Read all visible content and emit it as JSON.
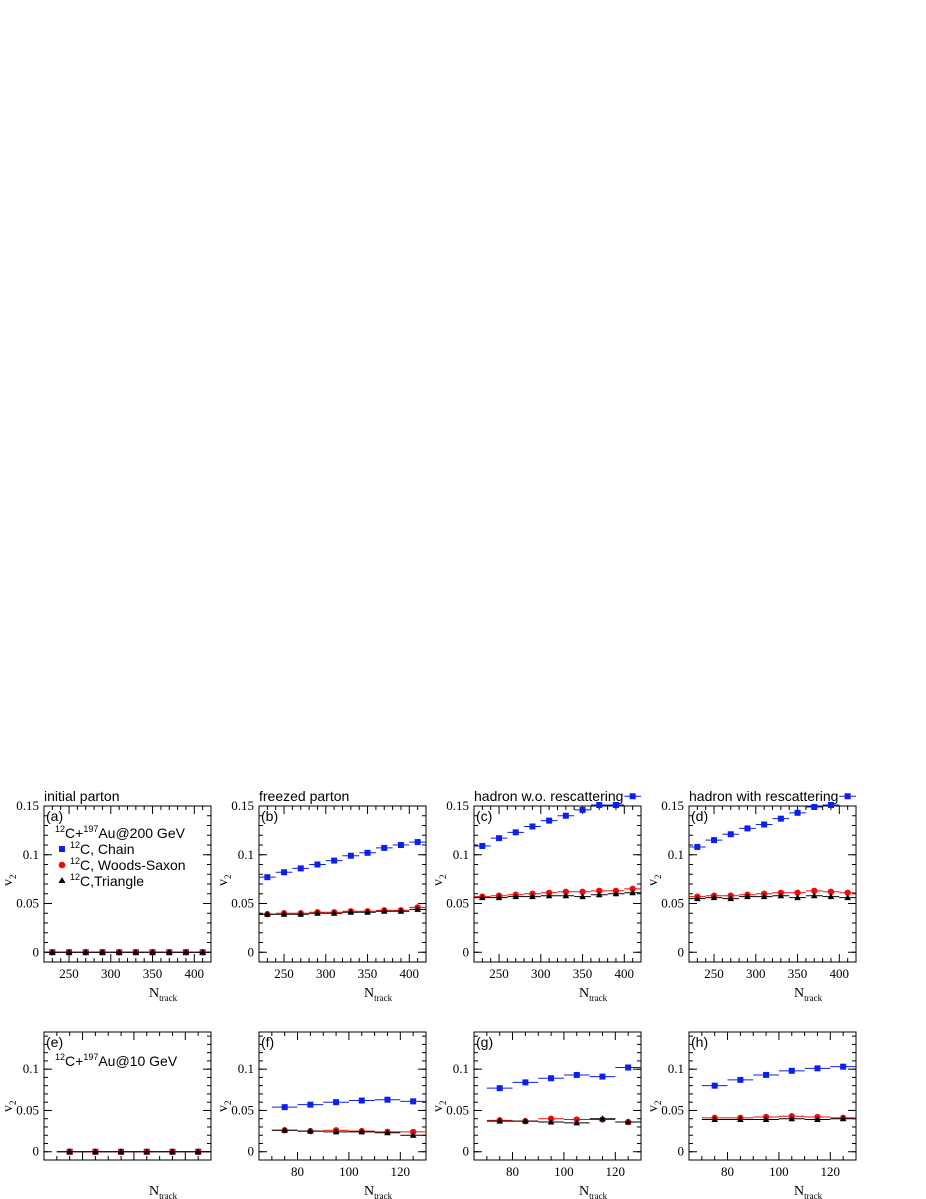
{
  "colors": {
    "chain": "#0b1fef",
    "woods_saxon": "#f00b0b",
    "triangle": "#000000"
  },
  "legend": {
    "system_top": {
      "a": "12",
      "b": "C+",
      "c": "197",
      "d": "Au@200 GeV"
    },
    "system_bottom": {
      "a": "12",
      "b": "C+",
      "c": "197",
      "d": "Au@10 GeV"
    },
    "entries": [
      {
        "sup": "12",
        "text": "C, Chain",
        "marker": "square",
        "color": "#0b1fef"
      },
      {
        "sup": "12",
        "text": "C, Woods-Saxon",
        "marker": "circle",
        "color": "#f00b0b"
      },
      {
        "sup": "12",
        "text": "C,Triangle",
        "marker": "triangle",
        "color": "#000000"
      }
    ]
  },
  "axis_text": {
    "ylabel_main": "v",
    "ylabel_sub": "2",
    "xlabel_main": "N",
    "xlabel_sub": "track"
  },
  "chart_data": [
    {
      "type": "scatter",
      "panel": "(a)",
      "title": "initial parton",
      "xlim": [
        220,
        420
      ],
      "ylim": [
        -0.01,
        0.15
      ],
      "xticks": [
        250,
        300,
        350,
        400
      ],
      "xtick_labels": [
        "250",
        "300",
        "350",
        "400"
      ],
      "yticks": [
        0,
        0.05,
        0.1,
        0.15
      ],
      "ytick_labels": [
        "0",
        "0.05",
        "0.1",
        "0.15"
      ],
      "x": [
        230,
        250,
        270,
        290,
        310,
        330,
        350,
        370,
        390,
        410
      ],
      "series": [
        {
          "name": "12C, Chain",
          "marker": "square",
          "color": "#0b1fef",
          "values": [
            0,
            0,
            0,
            0,
            0,
            0,
            0,
            0,
            0,
            0
          ]
        },
        {
          "name": "12C, Woods-Saxon",
          "marker": "circle",
          "color": "#f00b0b",
          "values": [
            0,
            0,
            0,
            0,
            0,
            0,
            0,
            0,
            0,
            0
          ]
        },
        {
          "name": "12C,Triangle",
          "marker": "triangle",
          "color": "#000000",
          "values": [
            0,
            0,
            0,
            0,
            0,
            0,
            0,
            0,
            0,
            0
          ]
        }
      ]
    },
    {
      "type": "scatter",
      "panel": "(b)",
      "title": "freezed parton",
      "xlim": [
        220,
        420
      ],
      "ylim": [
        -0.01,
        0.15
      ],
      "xticks": [
        250,
        300,
        350,
        400
      ],
      "xtick_labels": [
        "250",
        "300",
        "350",
        "400"
      ],
      "yticks": [
        0,
        0.05,
        0.1,
        0.15
      ],
      "ytick_labels": [
        "0",
        "0.05",
        "0.1",
        "0.15"
      ],
      "x": [
        230,
        250,
        270,
        290,
        310,
        330,
        350,
        370,
        390,
        410
      ],
      "series": [
        {
          "name": "12C, Chain",
          "marker": "square",
          "color": "#0b1fef",
          "values": [
            0.077,
            0.082,
            0.086,
            0.09,
            0.094,
            0.099,
            0.102,
            0.107,
            0.11,
            0.113
          ]
        },
        {
          "name": "12C, Woods-Saxon",
          "marker": "circle",
          "color": "#f00b0b",
          "values": [
            0.039,
            0.04,
            0.04,
            0.041,
            0.041,
            0.042,
            0.042,
            0.043,
            0.043,
            0.046
          ]
        },
        {
          "name": "12C,Triangle",
          "marker": "triangle",
          "color": "#000000",
          "values": [
            0.039,
            0.039,
            0.039,
            0.04,
            0.04,
            0.041,
            0.041,
            0.042,
            0.042,
            0.044
          ]
        }
      ]
    },
    {
      "type": "scatter",
      "panel": "(c)",
      "title": "hadron w.o. rescattering",
      "xlim": [
        220,
        420
      ],
      "ylim": [
        -0.01,
        0.15
      ],
      "xticks": [
        250,
        300,
        350,
        400
      ],
      "xtick_labels": [
        "250",
        "300",
        "350",
        "400"
      ],
      "yticks": [
        0,
        0.05,
        0.1,
        0.15
      ],
      "ytick_labels": [
        "0",
        "0.05",
        "0.1",
        "0.15"
      ],
      "x": [
        230,
        250,
        270,
        290,
        310,
        330,
        350,
        370,
        390,
        410
      ],
      "series": [
        {
          "name": "12C, Chain",
          "marker": "square",
          "color": "#0b1fef",
          "values": [
            0.109,
            0.117,
            0.123,
            0.129,
            0.135,
            0.14,
            0.146,
            0.151,
            0.151,
            0.16
          ]
        },
        {
          "name": "12C, Woods-Saxon",
          "marker": "circle",
          "color": "#f00b0b",
          "values": [
            0.057,
            0.058,
            0.059,
            0.06,
            0.061,
            0.062,
            0.062,
            0.063,
            0.063,
            0.065
          ]
        },
        {
          "name": "12C,Triangle",
          "marker": "triangle",
          "color": "#000000",
          "values": [
            0.056,
            0.056,
            0.057,
            0.057,
            0.058,
            0.058,
            0.057,
            0.059,
            0.06,
            0.061
          ]
        }
      ]
    },
    {
      "type": "scatter",
      "panel": "(d)",
      "title": "hadron with rescattering",
      "xlim": [
        220,
        420
      ],
      "ylim": [
        -0.01,
        0.15
      ],
      "xticks": [
        250,
        300,
        350,
        400
      ],
      "xtick_labels": [
        "250",
        "300",
        "350",
        "400"
      ],
      "yticks": [
        0,
        0.05,
        0.1,
        0.15
      ],
      "ytick_labels": [
        "0",
        "0.05",
        "0.1",
        "0.15"
      ],
      "x": [
        230,
        250,
        270,
        290,
        310,
        330,
        350,
        370,
        390,
        410
      ],
      "series": [
        {
          "name": "12C, Chain",
          "marker": "square",
          "color": "#0b1fef",
          "values": [
            0.108,
            0.115,
            0.121,
            0.127,
            0.131,
            0.137,
            0.143,
            0.149,
            0.151,
            0.16
          ]
        },
        {
          "name": "12C, Woods-Saxon",
          "marker": "circle",
          "color": "#f00b0b",
          "values": [
            0.057,
            0.058,
            0.058,
            0.059,
            0.06,
            0.061,
            0.061,
            0.063,
            0.062,
            0.061
          ]
        },
        {
          "name": "12C,Triangle",
          "marker": "triangle",
          "color": "#000000",
          "values": [
            0.055,
            0.056,
            0.055,
            0.057,
            0.057,
            0.058,
            0.056,
            0.058,
            0.057,
            0.056
          ]
        }
      ]
    },
    {
      "type": "scatter",
      "panel": "(e)",
      "title": "",
      "xlim": [
        65,
        130
      ],
      "ylim": [
        -0.01,
        0.145
      ],
      "xticks": [],
      "xtick_labels": [],
      "yticks": [
        0,
        0.05,
        0.1
      ],
      "ytick_labels": [
        "0",
        "0.05",
        "0.1"
      ],
      "x": [
        75,
        85,
        95,
        105,
        115,
        125
      ],
      "series": [
        {
          "name": "12C, Chain",
          "marker": "square",
          "color": "#0b1fef",
          "values": [
            0,
            0,
            0,
            0,
            0,
            0
          ]
        },
        {
          "name": "12C, Woods-Saxon",
          "marker": "circle",
          "color": "#f00b0b",
          "values": [
            0,
            0,
            0,
            0,
            0,
            0
          ]
        },
        {
          "name": "12C,Triangle",
          "marker": "triangle",
          "color": "#000000",
          "values": [
            0,
            0,
            0,
            0,
            0,
            0
          ]
        }
      ]
    },
    {
      "type": "scatter",
      "panel": "(f)",
      "title": "",
      "xlim": [
        65,
        130
      ],
      "ylim": [
        -0.01,
        0.145
      ],
      "xticks": [
        80,
        100,
        120
      ],
      "xtick_labels": [
        "80",
        "100",
        "120"
      ],
      "yticks": [
        0,
        0.05,
        0.1
      ],
      "ytick_labels": [
        "0",
        "0.05",
        "0.1"
      ],
      "x": [
        75,
        85,
        95,
        105,
        115,
        125
      ],
      "series": [
        {
          "name": "12C, Chain",
          "marker": "square",
          "color": "#0b1fef",
          "values": [
            0.054,
            0.057,
            0.06,
            0.062,
            0.063,
            0.061
          ]
        },
        {
          "name": "12C, Woods-Saxon",
          "marker": "circle",
          "color": "#f00b0b",
          "values": [
            0.026,
            0.025,
            0.026,
            0.025,
            0.024,
            0.024
          ]
        },
        {
          "name": "12C,Triangle",
          "marker": "triangle",
          "color": "#000000",
          "values": [
            0.026,
            0.025,
            0.024,
            0.024,
            0.023,
            0.02
          ]
        }
      ]
    },
    {
      "type": "scatter",
      "panel": "(g)",
      "title": "",
      "xlim": [
        65,
        130
      ],
      "ylim": [
        -0.01,
        0.145
      ],
      "xticks": [
        80,
        100,
        120
      ],
      "xtick_labels": [
        "80",
        "100",
        "120"
      ],
      "yticks": [
        0,
        0.05,
        0.1
      ],
      "ytick_labels": [
        "0",
        "0.05",
        "0.1"
      ],
      "x": [
        75,
        85,
        95,
        105,
        115,
        125
      ],
      "series": [
        {
          "name": "12C, Chain",
          "marker": "square",
          "color": "#0b1fef",
          "values": [
            0.077,
            0.084,
            0.089,
            0.093,
            0.091,
            0.102
          ]
        },
        {
          "name": "12C, Woods-Saxon",
          "marker": "circle",
          "color": "#f00b0b",
          "values": [
            0.038,
            0.037,
            0.04,
            0.039,
            0.039,
            0.036
          ]
        },
        {
          "name": "12C,Triangle",
          "marker": "triangle",
          "color": "#000000",
          "values": [
            0.037,
            0.037,
            0.036,
            0.035,
            0.04,
            0.036
          ]
        }
      ]
    },
    {
      "type": "scatter",
      "panel": "(h)",
      "title": "",
      "xlim": [
        65,
        130
      ],
      "ylim": [
        -0.01,
        0.145
      ],
      "xticks": [
        80,
        100,
        120
      ],
      "xtick_labels": [
        "80",
        "100",
        "120"
      ],
      "yticks": [
        0,
        0.05,
        0.1
      ],
      "ytick_labels": [
        "0",
        "0.05",
        "0.1"
      ],
      "x": [
        75,
        85,
        95,
        105,
        115,
        125
      ],
      "series": [
        {
          "name": "12C, Chain",
          "marker": "square",
          "color": "#0b1fef",
          "values": [
            0.08,
            0.087,
            0.093,
            0.098,
            0.101,
            0.103
          ]
        },
        {
          "name": "12C, Woods-Saxon",
          "marker": "circle",
          "color": "#f00b0b",
          "values": [
            0.041,
            0.041,
            0.042,
            0.043,
            0.042,
            0.041
          ]
        },
        {
          "name": "12C,Triangle",
          "marker": "triangle",
          "color": "#000000",
          "values": [
            0.039,
            0.039,
            0.039,
            0.04,
            0.039,
            0.04
          ]
        }
      ]
    }
  ]
}
